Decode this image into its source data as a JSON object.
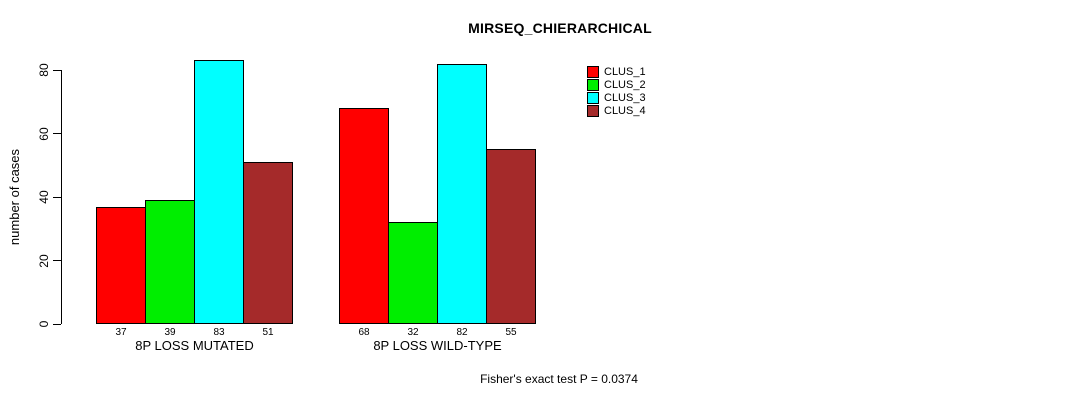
{
  "chart_data": {
    "type": "bar",
    "title": "MIRSEQ_CHIERARCHICAL",
    "ylabel": "number of cases",
    "xlabel": "",
    "yticks": [
      0,
      20,
      40,
      60,
      80
    ],
    "ylim": [
      0,
      85
    ],
    "grid": false,
    "legend_position": "top-right",
    "categories": [
      "8P LOSS MUTATED",
      "8P LOSS WILD-TYPE"
    ],
    "groups": [
      {
        "label": "8P LOSS MUTATED",
        "values": [
          37,
          39,
          83,
          51
        ]
      },
      {
        "label": "8P LOSS WILD-TYPE",
        "values": [
          68,
          32,
          82,
          55
        ]
      }
    ],
    "series": [
      {
        "name": "CLUS_1",
        "color": "#FF0000",
        "values": [
          37,
          68
        ]
      },
      {
        "name": "CLUS_2",
        "color": "#00EE00",
        "values": [
          39,
          32
        ]
      },
      {
        "name": "CLUS_3",
        "color": "#00FFFF",
        "values": [
          83,
          82
        ]
      },
      {
        "name": "CLUS_4",
        "color": "#A52A2A",
        "values": [
          51,
          55
        ]
      }
    ],
    "footer": "Fisher's exact test P = 0.0374"
  }
}
